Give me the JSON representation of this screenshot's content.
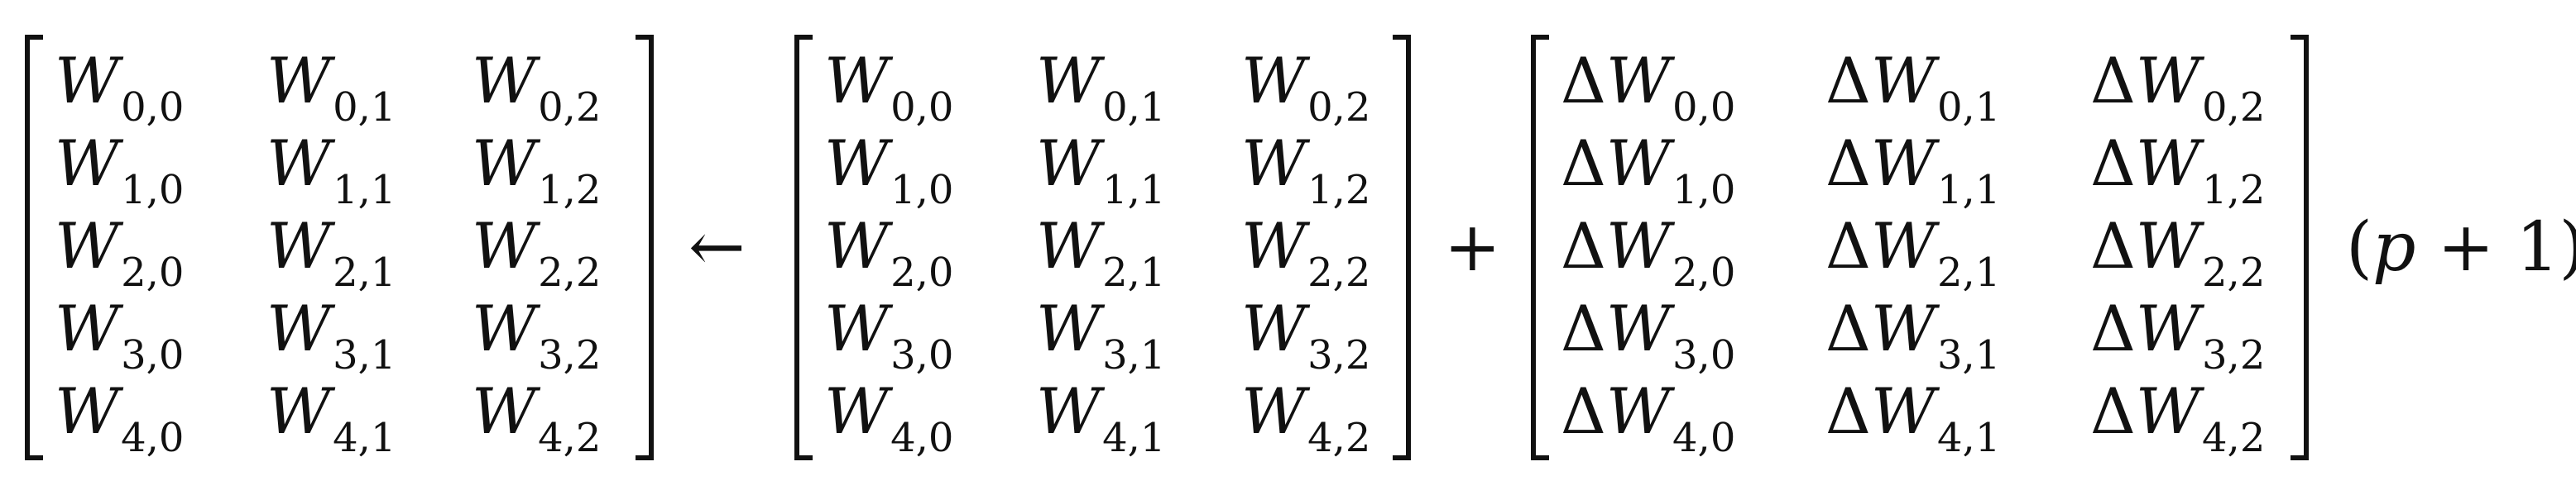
{
  "equation": {
    "lhs_matrix": {
      "rows": [
        [
          {
            "var": "W",
            "sub": "0,0"
          },
          {
            "var": "W",
            "sub": "0,1"
          },
          {
            "var": "W",
            "sub": "0,2"
          }
        ],
        [
          {
            "var": "W",
            "sub": "1,0"
          },
          {
            "var": "W",
            "sub": "1,1"
          },
          {
            "var": "W",
            "sub": "1,2"
          }
        ],
        [
          {
            "var": "W",
            "sub": "2,0"
          },
          {
            "var": "W",
            "sub": "2,1"
          },
          {
            "var": "W",
            "sub": "2,2"
          }
        ],
        [
          {
            "var": "W",
            "sub": "3,0"
          },
          {
            "var": "W",
            "sub": "3,1"
          },
          {
            "var": "W",
            "sub": "3,2"
          }
        ],
        [
          {
            "var": "W",
            "sub": "4,0"
          },
          {
            "var": "W",
            "sub": "4,1"
          },
          {
            "var": "W",
            "sub": "4,2"
          }
        ]
      ]
    },
    "arrow_symbol": "←",
    "rhs_matrix": {
      "rows": [
        [
          {
            "var": "W",
            "sub": "0,0"
          },
          {
            "var": "W",
            "sub": "0,1"
          },
          {
            "var": "W",
            "sub": "0,2"
          }
        ],
        [
          {
            "var": "W",
            "sub": "1,0"
          },
          {
            "var": "W",
            "sub": "1,1"
          },
          {
            "var": "W",
            "sub": "1,2"
          }
        ],
        [
          {
            "var": "W",
            "sub": "2,0"
          },
          {
            "var": "W",
            "sub": "2,1"
          },
          {
            "var": "W",
            "sub": "2,2"
          }
        ],
        [
          {
            "var": "W",
            "sub": "3,0"
          },
          {
            "var": "W",
            "sub": "3,1"
          },
          {
            "var": "W",
            "sub": "3,2"
          }
        ],
        [
          {
            "var": "W",
            "sub": "4,0"
          },
          {
            "var": "W",
            "sub": "4,1"
          },
          {
            "var": "W",
            "sub": "4,2"
          }
        ]
      ]
    },
    "plus_symbol": "+",
    "delta_matrix": {
      "rows": [
        [
          {
            "prefix": "Δ",
            "var": "W",
            "sub": "0,0"
          },
          {
            "prefix": "Δ",
            "var": "W",
            "sub": "0,1"
          },
          {
            "prefix": "Δ",
            "var": "W",
            "sub": "0,2"
          }
        ],
        [
          {
            "prefix": "Δ",
            "var": "W",
            "sub": "1,0"
          },
          {
            "prefix": "Δ",
            "var": "W",
            "sub": "1,1"
          },
          {
            "prefix": "Δ",
            "var": "W",
            "sub": "1,2"
          }
        ],
        [
          {
            "prefix": "Δ",
            "var": "W",
            "sub": "2,0"
          },
          {
            "prefix": "Δ",
            "var": "W",
            "sub": "2,1"
          },
          {
            "prefix": "Δ",
            "var": "W",
            "sub": "2,2"
          }
        ],
        [
          {
            "prefix": "Δ",
            "var": "W",
            "sub": "3,0"
          },
          {
            "prefix": "Δ",
            "var": "W",
            "sub": "3,1"
          },
          {
            "prefix": "Δ",
            "var": "W",
            "sub": "3,2"
          }
        ],
        [
          {
            "prefix": "Δ",
            "var": "W",
            "sub": "4,0"
          },
          {
            "prefix": "Δ",
            "var": "W",
            "sub": "4,1"
          },
          {
            "prefix": "Δ",
            "var": "W",
            "sub": "4,2"
          }
        ]
      ]
    },
    "factor": {
      "open": "(",
      "var": "p",
      "op": " + ",
      "num": "1",
      "close": ")"
    }
  }
}
